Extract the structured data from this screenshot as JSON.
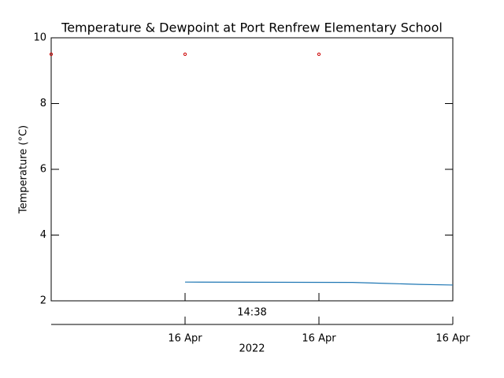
{
  "chart_data": {
    "type": "line",
    "title": "Temperature & Dewpoint at Port Renfrew Elementary School",
    "y_label": "Temperature (°C)",
    "annotations": [
      "14:38",
      "2022"
    ],
    "xlim": [
      0,
      3
    ],
    "xticks": [
      {
        "value": 1,
        "label": "16 Apr"
      },
      {
        "value": 2,
        "label": "16 Apr"
      },
      {
        "value": 3,
        "label": "16 Apr"
      }
    ],
    "ylim": [
      2,
      10
    ],
    "yticks": [
      2,
      4,
      6,
      8,
      10
    ],
    "series": [
      {
        "color": "#cc0000",
        "marker": "circle",
        "x": [
          0,
          1,
          2
        ],
        "values": [
          9.5,
          9.5,
          9.5
        ]
      },
      {
        "color": "#1f77b4",
        "marker": "line",
        "x": [
          1,
          2.25,
          2.5,
          2.75,
          3
        ],
        "values": [
          2.57,
          2.56,
          2.53,
          2.5,
          2.48
        ]
      }
    ]
  }
}
